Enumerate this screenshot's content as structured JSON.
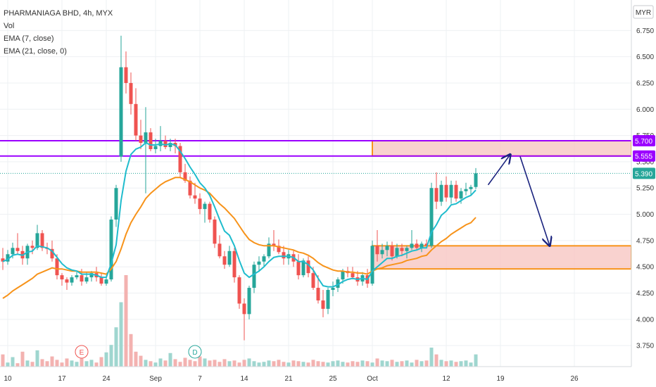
{
  "header": {
    "title": "PHARMANIAGA BHD, 4h, MYX",
    "vol": "Vol",
    "ema7": "EMA (7, close)",
    "ema21": "EMA (21, close, 0)"
  },
  "colors": {
    "up": "#26a69a",
    "down": "#ef5350",
    "up_vol": "#9fd6cf",
    "down_vol": "#f3b2b0",
    "ema7": "#1fbccd",
    "ema21": "#f7931a",
    "purple": "#9b00ff",
    "zone_fill": "#f8c7c3",
    "zone_stroke": "#f7931a",
    "grid": "#eef0f3"
  },
  "chart_data": {
    "type": "candlestick",
    "currency": "MYR",
    "y_ticks": [
      "6.750",
      "6.500",
      "6.250",
      "6.000",
      "5.750",
      "5.500",
      "5.250",
      "5.000",
      "4.750",
      "4.500",
      "4.250",
      "4.000",
      "3.750"
    ],
    "ylim": [
      3.55,
      7.0
    ],
    "x_ticks": [
      {
        "label": "10",
        "i": 1
      },
      {
        "label": "17",
        "i": 12
      },
      {
        "label": "24",
        "i": 21
      },
      {
        "label": "Sep",
        "i": 31
      },
      {
        "label": "7",
        "i": 40
      },
      {
        "label": "14",
        "i": 49
      },
      {
        "label": "21",
        "i": 58
      },
      {
        "label": "25",
        "i": 67
      },
      {
        "label": "Oct",
        "i": 75
      },
      {
        "label": "12",
        "i": 90
      },
      {
        "label": "19",
        "i": 101
      },
      {
        "label": "26",
        "i": 116
      }
    ],
    "candles": [
      [
        4.58,
        4.68,
        4.47,
        4.55
      ],
      [
        4.55,
        4.66,
        4.52,
        4.62
      ],
      [
        4.62,
        4.73,
        4.58,
        4.68
      ],
      [
        4.68,
        4.82,
        4.62,
        4.65
      ],
      [
        4.65,
        4.7,
        4.52,
        4.58
      ],
      [
        4.58,
        4.72,
        4.52,
        4.7
      ],
      [
        4.7,
        4.75,
        4.62,
        4.68
      ],
      [
        4.68,
        4.9,
        4.66,
        4.82
      ],
      [
        4.82,
        4.85,
        4.65,
        4.68
      ],
      [
        4.68,
        4.73,
        4.62,
        4.67
      ],
      [
        4.67,
        4.75,
        4.55,
        4.58
      ],
      [
        4.58,
        4.62,
        4.38,
        4.42
      ],
      [
        4.42,
        4.44,
        4.32,
        4.38
      ],
      [
        4.38,
        4.4,
        4.28,
        4.35
      ],
      [
        4.35,
        4.42,
        4.32,
        4.4
      ],
      [
        4.4,
        4.45,
        4.38,
        4.42
      ],
      [
        4.42,
        4.48,
        4.32,
        4.36
      ],
      [
        4.36,
        4.45,
        4.34,
        4.4
      ],
      [
        4.4,
        4.46,
        4.36,
        4.44
      ],
      [
        4.44,
        4.5,
        4.36,
        4.4
      ],
      [
        4.4,
        4.44,
        4.32,
        4.34
      ],
      [
        4.34,
        4.42,
        4.32,
        4.38
      ],
      [
        4.38,
        4.98,
        4.36,
        4.95
      ],
      [
        4.95,
        5.28,
        4.88,
        5.25
      ],
      [
        5.55,
        6.7,
        5.5,
        6.4
      ],
      [
        6.4,
        6.55,
        6.15,
        6.25
      ],
      [
        6.25,
        6.35,
        5.95,
        6.05
      ],
      [
        6.05,
        6.2,
        5.7,
        5.75
      ],
      [
        5.75,
        5.9,
        5.62,
        5.68
      ],
      [
        5.68,
        6.02,
        5.2,
        5.78
      ],
      [
        5.78,
        5.82,
        5.6,
        5.62
      ],
      [
        5.62,
        5.72,
        5.58,
        5.65
      ],
      [
        5.65,
        5.84,
        5.6,
        5.7
      ],
      [
        5.7,
        5.75,
        5.62,
        5.64
      ],
      [
        5.64,
        5.72,
        5.6,
        5.68
      ],
      [
        5.68,
        5.72,
        5.58,
        5.65
      ],
      [
        5.65,
        5.68,
        5.35,
        5.4
      ],
      [
        5.4,
        5.48,
        5.3,
        5.32
      ],
      [
        5.32,
        5.36,
        5.15,
        5.18
      ],
      [
        5.18,
        5.3,
        5.1,
        5.15
      ],
      [
        5.15,
        5.2,
        5.0,
        5.05
      ],
      [
        5.05,
        5.12,
        4.92,
        5.1
      ],
      [
        5.1,
        5.12,
        4.92,
        4.95
      ],
      [
        4.95,
        4.98,
        4.68,
        4.72
      ],
      [
        4.72,
        4.8,
        4.58,
        4.6
      ],
      [
        4.6,
        4.65,
        4.48,
        4.52
      ],
      [
        4.52,
        4.7,
        4.5,
        4.65
      ],
      [
        4.65,
        4.68,
        4.35,
        4.4
      ],
      [
        4.4,
        4.42,
        4.1,
        4.15
      ],
      [
        4.15,
        4.2,
        3.8,
        4.05
      ],
      [
        4.05,
        4.32,
        4.0,
        4.3
      ],
      [
        4.3,
        4.55,
        4.25,
        4.52
      ],
      [
        4.52,
        4.6,
        4.45,
        4.55
      ],
      [
        4.55,
        4.62,
        4.5,
        4.6
      ],
      [
        4.6,
        4.78,
        4.58,
        4.72
      ],
      [
        4.72,
        4.85,
        4.65,
        4.7
      ],
      [
        4.7,
        4.76,
        4.62,
        4.64
      ],
      [
        4.64,
        4.7,
        4.52,
        4.58
      ],
      [
        4.58,
        4.66,
        4.52,
        4.62
      ],
      [
        4.62,
        4.66,
        4.5,
        4.55
      ],
      [
        4.55,
        4.62,
        4.38,
        4.42
      ],
      [
        4.42,
        4.58,
        4.4,
        4.56
      ],
      [
        4.56,
        4.6,
        4.4,
        4.44
      ],
      [
        4.44,
        4.5,
        4.28,
        4.3
      ],
      [
        4.3,
        4.42,
        4.15,
        4.18
      ],
      [
        4.18,
        4.28,
        4.02,
        4.1
      ],
      [
        4.1,
        4.3,
        4.05,
        4.28
      ],
      [
        4.28,
        4.36,
        4.22,
        4.3
      ],
      [
        4.3,
        4.4,
        4.26,
        4.38
      ],
      [
        4.38,
        4.48,
        4.34,
        4.46
      ],
      [
        4.46,
        4.5,
        4.4,
        4.44
      ],
      [
        4.44,
        4.5,
        4.38,
        4.4
      ],
      [
        4.4,
        4.46,
        4.32,
        4.36
      ],
      [
        4.36,
        4.45,
        4.32,
        4.42
      ],
      [
        4.42,
        4.48,
        4.3,
        4.34
      ],
      [
        4.34,
        4.75,
        4.32,
        4.7
      ],
      [
        4.7,
        4.85,
        4.55,
        4.62
      ],
      [
        4.62,
        4.72,
        4.58,
        4.66
      ],
      [
        4.66,
        4.74,
        4.6,
        4.7
      ],
      [
        4.7,
        4.74,
        4.56,
        4.6
      ],
      [
        4.6,
        4.72,
        4.58,
        4.68
      ],
      [
        4.68,
        4.72,
        4.6,
        4.65
      ],
      [
        4.65,
        4.7,
        4.58,
        4.68
      ],
      [
        4.68,
        4.85,
        4.66,
        4.72
      ],
      [
        4.72,
        4.76,
        4.66,
        4.68
      ],
      [
        4.68,
        4.74,
        4.64,
        4.72
      ],
      [
        4.72,
        4.76,
        4.68,
        4.7
      ],
      [
        4.7,
        5.3,
        4.68,
        5.25
      ],
      [
        5.25,
        5.4,
        5.05,
        5.12
      ],
      [
        5.12,
        5.32,
        5.08,
        5.28
      ],
      [
        5.28,
        5.36,
        5.12,
        5.16
      ],
      [
        5.16,
        5.32,
        5.1,
        5.28
      ],
      [
        5.28,
        5.32,
        5.12,
        5.15
      ],
      [
        5.15,
        5.25,
        5.1,
        5.22
      ],
      [
        5.22,
        5.3,
        5.18,
        5.24
      ],
      [
        5.24,
        5.28,
        5.18,
        5.26
      ],
      [
        5.26,
        5.44,
        5.24,
        5.39
      ]
    ],
    "volume": [
      18,
      6,
      14,
      5,
      22,
      9,
      7,
      24,
      11,
      8,
      15,
      10,
      6,
      12,
      9,
      7,
      17,
      8,
      10,
      6,
      14,
      21,
      32,
      58,
      95,
      135,
      48,
      22,
      16,
      10,
      8,
      6,
      12,
      9,
      20,
      11,
      7,
      13,
      10,
      8,
      15,
      12,
      9,
      10,
      7,
      11,
      8,
      9,
      6,
      10,
      12,
      8,
      6,
      7,
      9,
      8,
      10,
      7,
      6,
      9,
      8,
      7,
      6,
      10,
      8,
      7,
      6,
      8,
      9,
      7,
      6,
      8,
      7,
      9,
      8,
      6,
      12,
      9,
      8,
      10,
      7,
      8,
      9,
      6,
      10,
      8,
      9,
      28,
      18,
      10,
      8,
      9,
      7,
      8,
      9,
      6,
      18
    ],
    "ema7": [
      4.55,
      4.57,
      4.61,
      4.62,
      4.61,
      4.64,
      4.65,
      4.7,
      4.69,
      4.68,
      4.65,
      4.59,
      4.53,
      4.49,
      4.47,
      4.46,
      4.43,
      4.43,
      4.43,
      4.42,
      4.4,
      4.4,
      4.53,
      4.71,
      5.13,
      5.41,
      5.57,
      5.62,
      5.64,
      5.68,
      5.66,
      5.66,
      5.67,
      5.66,
      5.67,
      5.66,
      5.6,
      5.53,
      5.45,
      5.38,
      5.3,
      5.25,
      5.18,
      5.07,
      4.95,
      4.84,
      4.8,
      4.7,
      4.56,
      4.44,
      4.4,
      4.43,
      4.46,
      4.5,
      4.55,
      4.59,
      4.6,
      4.6,
      4.6,
      4.59,
      4.55,
      4.55,
      4.52,
      4.47,
      4.39,
      4.32,
      4.31,
      4.31,
      4.33,
      4.36,
      4.38,
      4.39,
      4.38,
      4.39,
      4.38,
      4.46,
      4.5,
      4.54,
      4.58,
      4.58,
      4.6,
      4.61,
      4.63,
      4.65,
      4.66,
      4.68,
      4.68,
      4.83,
      4.9,
      4.99,
      5.03,
      5.09,
      5.1,
      5.13,
      5.16,
      5.18,
      5.23
    ],
    "ema21": [
      4.2,
      4.23,
      4.27,
      4.3,
      4.33,
      4.36,
      4.39,
      4.43,
      4.45,
      4.47,
      4.49,
      4.48,
      4.48,
      4.47,
      4.46,
      4.46,
      4.45,
      4.45,
      4.45,
      4.45,
      4.44,
      4.43,
      4.48,
      4.55,
      4.67,
      4.81,
      4.92,
      5.0,
      5.07,
      5.15,
      5.2,
      5.24,
      5.28,
      5.31,
      5.33,
      5.35,
      5.35,
      5.33,
      5.31,
      5.28,
      5.25,
      5.23,
      5.2,
      5.15,
      5.1,
      5.06,
      5.01,
      4.96,
      4.89,
      4.82,
      4.76,
      4.73,
      4.71,
      4.7,
      4.7,
      4.7,
      4.69,
      4.68,
      4.67,
      4.66,
      4.64,
      4.63,
      4.61,
      4.58,
      4.54,
      4.51,
      4.49,
      4.47,
      4.46,
      4.46,
      4.45,
      4.45,
      4.44,
      4.44,
      4.43,
      4.46,
      4.48,
      4.49,
      4.51,
      4.52,
      4.53,
      4.54,
      4.56,
      4.57,
      4.58,
      4.6,
      4.61,
      4.66,
      4.7,
      4.74,
      4.77,
      4.81,
      4.84,
      4.87,
      4.9,
      4.92,
      4.97
    ],
    "price_tags": [
      {
        "label": "5.700",
        "value": 5.7,
        "color": "#9b00ff"
      },
      {
        "label": "5.555",
        "value": 5.555,
        "color": "#9b00ff"
      },
      {
        "label": "5.390",
        "value": 5.39,
        "color": "#26a69a"
      }
    ],
    "hlines": [
      5.7,
      5.555
    ],
    "zones": [
      {
        "from_i": 75,
        "to_i": 130,
        "low": 5.555,
        "high": 5.7
      },
      {
        "from_i": 75,
        "to_i": 130,
        "low": 4.48,
        "high": 4.7
      }
    ],
    "event_markers": [
      {
        "label": "E",
        "i": 16,
        "color": "#ef5350"
      },
      {
        "label": "D",
        "i": 39,
        "color": "#26a69a"
      }
    ],
    "arrows": [
      {
        "from": [
          98.5,
          5.28
        ],
        "to": [
          103,
          5.57
        ]
      },
      {
        "from": [
          105,
          5.55
        ],
        "to": [
          111,
          4.7
        ]
      }
    ],
    "last_price_line": 5.39
  }
}
